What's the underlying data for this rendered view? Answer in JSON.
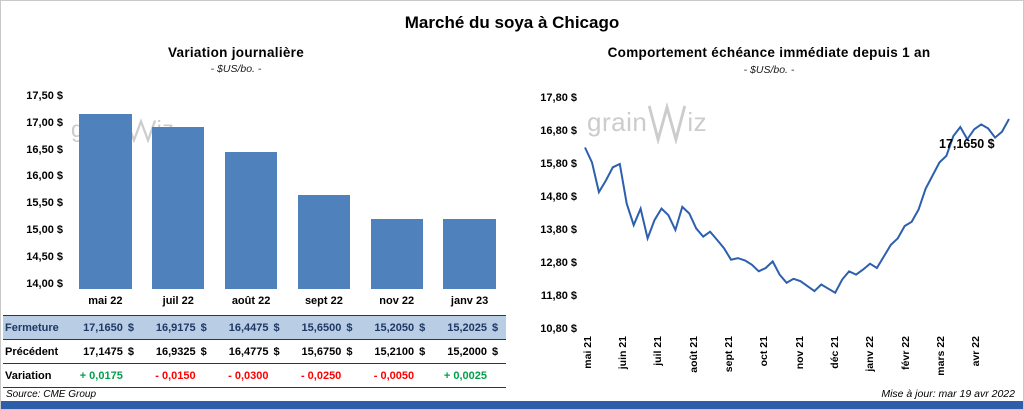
{
  "page": {
    "title": "Marché du soya à Chicago",
    "source": "Source: CME Group",
    "updated": "Mise à jour: mar 19 avr 2022",
    "watermark": {
      "pre": "grain",
      "post": "iz"
    }
  },
  "colors": {
    "bar_fill": "#4F81BD",
    "line_stroke": "#2D5FAE",
    "table_highlight_bg": "#B9CDE5",
    "table_border": "#1F3864",
    "navy_text": "#1F3864",
    "positive": "#00A14B",
    "negative": "#FF0000",
    "bottom_bar": "#2C5FA8",
    "watermark": "#C8C8C8"
  },
  "chart_data": [
    {
      "type": "bar",
      "title": "Variation journalière",
      "subtitle": "- $US/bo. -",
      "categories": [
        "mai 22",
        "juil 22",
        "août 22",
        "sept 22",
        "nov 22",
        "janv 23"
      ],
      "values": [
        17.165,
        16.9175,
        16.4475,
        15.65,
        15.205,
        15.2025
      ],
      "ylim": [
        13.9,
        17.5
      ],
      "grid": false,
      "legend": false,
      "yticks": [
        {
          "value": 17.5,
          "label": "17,50 $"
        },
        {
          "value": 17.0,
          "label": "17,00 $"
        },
        {
          "value": 16.5,
          "label": "16,50 $"
        },
        {
          "value": 16.0,
          "label": "16,00 $"
        },
        {
          "value": 15.5,
          "label": "15,50 $"
        },
        {
          "value": 15.0,
          "label": "15,00 $"
        },
        {
          "value": 14.5,
          "label": "14,50 $"
        },
        {
          "value": 14.0,
          "label": "14,00 $"
        }
      ]
    },
    {
      "type": "line",
      "title": "Comportement échéance immédiate depuis 1 an",
      "subtitle": "- $US/bo. -",
      "x_labels": [
        "mai 21",
        "juin 21",
        "juil 21",
        "août 21",
        "sept 21",
        "oct 21",
        "nov 21",
        "déc 21",
        "janv 22",
        "févr 22",
        "mars 22",
        "avr 22"
      ],
      "values": [
        16.3,
        15.85,
        14.95,
        15.3,
        15.7,
        15.8,
        14.6,
        13.95,
        14.45,
        13.55,
        14.1,
        14.45,
        14.25,
        13.8,
        14.5,
        14.3,
        13.85,
        13.6,
        13.75,
        13.5,
        13.25,
        12.9,
        12.95,
        12.88,
        12.75,
        12.55,
        12.65,
        12.85,
        12.45,
        12.2,
        12.32,
        12.25,
        12.1,
        11.95,
        12.15,
        12.02,
        11.9,
        12.3,
        12.55,
        12.45,
        12.6,
        12.78,
        12.65,
        13.0,
        13.35,
        13.55,
        13.92,
        14.05,
        14.42,
        15.05,
        15.45,
        15.85,
        16.05,
        16.65,
        16.92,
        16.55,
        16.85,
        17.0,
        16.88,
        16.6,
        16.78,
        17.165
      ],
      "ylim": [
        10.8,
        17.8
      ],
      "grid": false,
      "legend": false,
      "annotation": {
        "text": "17,1650 $"
      },
      "yticks": [
        {
          "value": 17.8,
          "label": "17,80 $"
        },
        {
          "value": 16.8,
          "label": "16,80 $"
        },
        {
          "value": 15.8,
          "label": "15,80 $"
        },
        {
          "value": 14.8,
          "label": "14,80 $"
        },
        {
          "value": 13.8,
          "label": "13,80 $"
        },
        {
          "value": 12.8,
          "label": "12,80 $"
        },
        {
          "value": 11.8,
          "label": "11,80 $"
        },
        {
          "value": 10.8,
          "label": "10,80 $"
        }
      ]
    }
  ],
  "table": {
    "rows": [
      {
        "kind": "fermeture",
        "label": "Fermeture",
        "suffix": "$",
        "cells": [
          "17,1650",
          "16,9175",
          "16,4475",
          "15,6500",
          "15,2050",
          "15,2025"
        ]
      },
      {
        "kind": "precedent",
        "label": "Précédent",
        "suffix": "$",
        "cells": [
          "17,1475",
          "16,9325",
          "16,4775",
          "15,6750",
          "15,2100",
          "15,2000"
        ]
      },
      {
        "kind": "variation",
        "label": "Variation",
        "suffix": "",
        "cells": [
          "+ 0,0175",
          "- 0,0150",
          "- 0,0300",
          "- 0,0250",
          "- 0,0050",
          "+ 0,0025"
        ],
        "signs": [
          "pos",
          "neg",
          "neg",
          "neg",
          "neg",
          "pos"
        ]
      }
    ]
  }
}
